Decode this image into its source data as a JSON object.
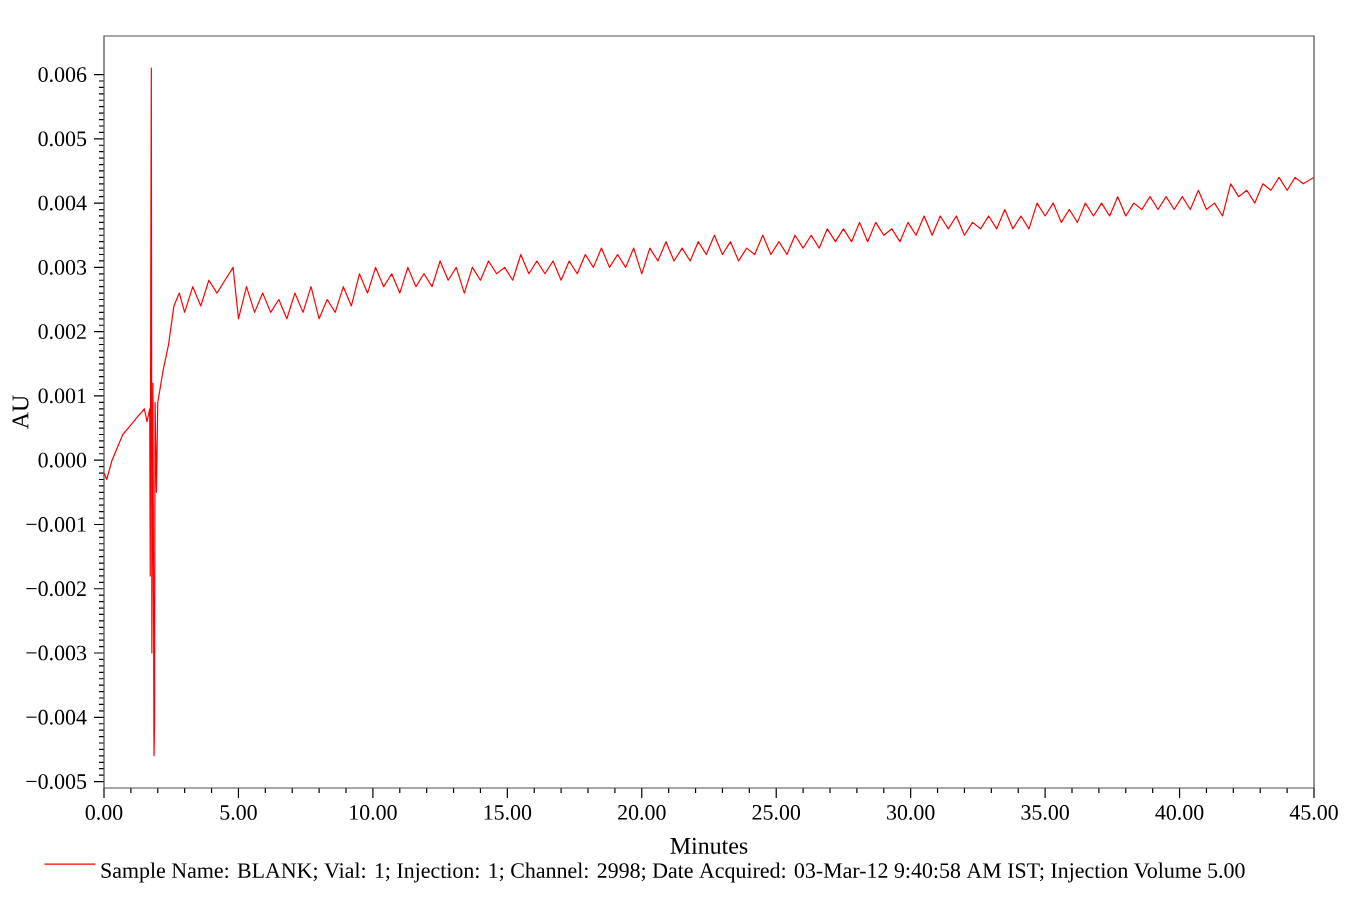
{
  "chart_data": {
    "type": "line",
    "xlabel": "Minutes",
    "ylabel": "AU",
    "xlim": [
      0,
      45
    ],
    "ylim": [
      -0.0051,
      0.0066
    ],
    "xticks": [
      {
        "value": 0,
        "label": "0.00"
      },
      {
        "value": 5,
        "label": "5.00"
      },
      {
        "value": 10,
        "label": "10.00"
      },
      {
        "value": 15,
        "label": "15.00"
      },
      {
        "value": 20,
        "label": "20.00"
      },
      {
        "value": 25,
        "label": "25.00"
      },
      {
        "value": 30,
        "label": "30.00"
      },
      {
        "value": 35,
        "label": "35.00"
      },
      {
        "value": 40,
        "label": "40.00"
      },
      {
        "value": 45,
        "label": "45.00"
      }
    ],
    "yticks": [
      {
        "value": -0.005,
        "label": "−0.005"
      },
      {
        "value": -0.004,
        "label": "−0.004"
      },
      {
        "value": -0.003,
        "label": "−0.003"
      },
      {
        "value": -0.002,
        "label": "−0.002"
      },
      {
        "value": -0.001,
        "label": "−0.001"
      },
      {
        "value": 0,
        "label": "0.000"
      },
      {
        "value": 0.001,
        "label": "0.001"
      },
      {
        "value": 0.002,
        "label": "0.002"
      },
      {
        "value": 0.003,
        "label": "0.003"
      },
      {
        "value": 0.004,
        "label": "0.004"
      },
      {
        "value": 0.005,
        "label": "0.005"
      },
      {
        "value": 0.006,
        "label": "0.006"
      }
    ],
    "legend": "bottom",
    "series": [
      {
        "name": "Sample Name: BLANK; Vial: 1; Injection: 1; Channel: 2998; Date Acquired: 03-Mar-12 9:40:58 AM IST; Injection Volume 5.00",
        "color": "#ff0000",
        "x": [
          0,
          0.1,
          0.3,
          0.5,
          0.7,
          0.9,
          1.1,
          1.3,
          1.5,
          1.6,
          1.7,
          1.72,
          1.74,
          1.76,
          1.78,
          1.82,
          1.86,
          1.88,
          1.9,
          1.95,
          2.0,
          2.2,
          2.4,
          2.6,
          2.8,
          3.0,
          3.3,
          3.6,
          3.9,
          4.2,
          4.5,
          4.8,
          5.0,
          5.3,
          5.6,
          5.9,
          6.2,
          6.5,
          6.8,
          7.1,
          7.4,
          7.7,
          8.0,
          8.3,
          8.6,
          8.9,
          9.2,
          9.5,
          9.8,
          10.1,
          10.4,
          10.7,
          11.0,
          11.3,
          11.6,
          11.9,
          12.2,
          12.5,
          12.8,
          13.1,
          13.4,
          13.7,
          14.0,
          14.3,
          14.6,
          14.9,
          15.2,
          15.5,
          15.8,
          16.1,
          16.4,
          16.7,
          17.0,
          17.3,
          17.6,
          17.9,
          18.2,
          18.5,
          18.8,
          19.1,
          19.4,
          19.7,
          20.0,
          20.3,
          20.6,
          20.9,
          21.2,
          21.5,
          21.8,
          22.1,
          22.4,
          22.7,
          23.0,
          23.3,
          23.6,
          23.9,
          24.2,
          24.5,
          24.8,
          25.1,
          25.4,
          25.7,
          26.0,
          26.3,
          26.6,
          26.9,
          27.2,
          27.5,
          27.8,
          28.1,
          28.4,
          28.7,
          29.0,
          29.3,
          29.6,
          29.9,
          30.2,
          30.5,
          30.8,
          31.1,
          31.4,
          31.7,
          32.0,
          32.3,
          32.6,
          32.9,
          33.2,
          33.5,
          33.8,
          34.1,
          34.4,
          34.7,
          35.0,
          35.3,
          35.6,
          35.9,
          36.2,
          36.5,
          36.8,
          37.1,
          37.4,
          37.7,
          38.0,
          38.3,
          38.6,
          38.9,
          39.2,
          39.5,
          39.8,
          40.1,
          40.4,
          40.7,
          41.0,
          41.3,
          41.6,
          41.9,
          42.2,
          42.5,
          42.8,
          43.1,
          43.4,
          43.7,
          44.0,
          44.3,
          44.6,
          45.0
        ],
        "values": [
          -0.0002,
          -0.0003,
          0.0,
          0.0002,
          0.0004,
          0.0005,
          0.0006,
          0.0007,
          0.0008,
          0.0006,
          0.0008,
          -0.0018,
          0.0029,
          0.0061,
          -0.003,
          0.0012,
          -0.0046,
          -0.0041,
          0.0009,
          -0.0005,
          0.0009,
          0.0014,
          0.0018,
          0.0024,
          0.0026,
          0.0023,
          0.0027,
          0.0024,
          0.0028,
          0.0026,
          0.0028,
          0.003,
          0.0022,
          0.0027,
          0.0023,
          0.0026,
          0.0023,
          0.0025,
          0.0022,
          0.0026,
          0.0023,
          0.0027,
          0.0022,
          0.0025,
          0.0023,
          0.0027,
          0.0024,
          0.0029,
          0.0026,
          0.003,
          0.0027,
          0.0029,
          0.0026,
          0.003,
          0.0027,
          0.0029,
          0.0027,
          0.0031,
          0.0028,
          0.003,
          0.0026,
          0.003,
          0.0028,
          0.0031,
          0.0029,
          0.003,
          0.0028,
          0.0032,
          0.0029,
          0.0031,
          0.0029,
          0.0031,
          0.0028,
          0.0031,
          0.0029,
          0.0032,
          0.003,
          0.0033,
          0.003,
          0.0032,
          0.003,
          0.0033,
          0.0029,
          0.0033,
          0.0031,
          0.0034,
          0.0031,
          0.0033,
          0.0031,
          0.0034,
          0.0032,
          0.0035,
          0.0032,
          0.0034,
          0.0031,
          0.0033,
          0.0032,
          0.0035,
          0.0032,
          0.0034,
          0.0032,
          0.0035,
          0.0033,
          0.0035,
          0.0033,
          0.0036,
          0.0034,
          0.0036,
          0.0034,
          0.0037,
          0.0034,
          0.0037,
          0.0035,
          0.0036,
          0.0034,
          0.0037,
          0.0035,
          0.0038,
          0.0035,
          0.0038,
          0.0036,
          0.0038,
          0.0035,
          0.0037,
          0.0036,
          0.0038,
          0.0036,
          0.0039,
          0.0036,
          0.0038,
          0.0036,
          0.004,
          0.0038,
          0.004,
          0.0037,
          0.0039,
          0.0037,
          0.004,
          0.0038,
          0.004,
          0.0038,
          0.0041,
          0.0038,
          0.004,
          0.0039,
          0.0041,
          0.0039,
          0.0041,
          0.0039,
          0.0041,
          0.0039,
          0.0042,
          0.0039,
          0.004,
          0.0038,
          0.0043,
          0.0041,
          0.0042,
          0.004,
          0.0043,
          0.0042,
          0.0044,
          0.0042,
          0.0044,
          0.0043,
          0.0044
        ]
      }
    ]
  }
}
